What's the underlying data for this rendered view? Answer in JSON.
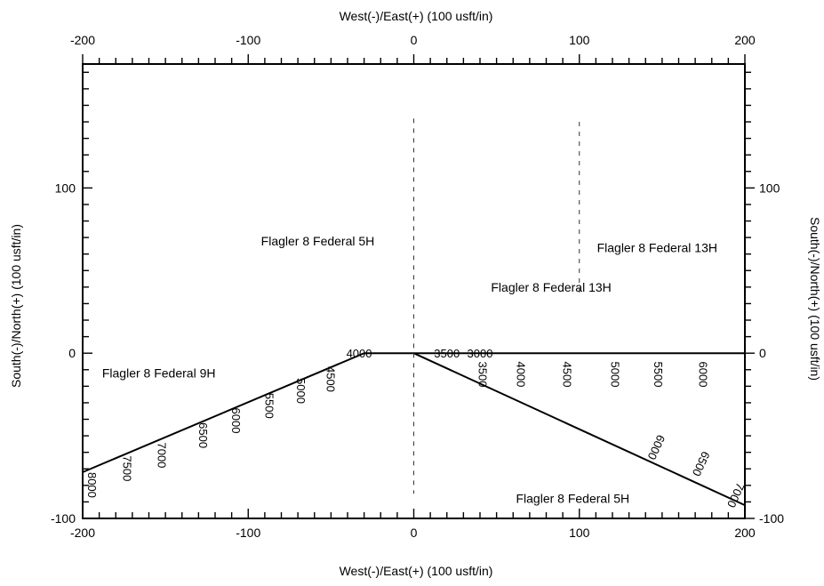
{
  "chart_data": {
    "type": "line",
    "title": "",
    "xlabel": "West(-)/East(+) (100 usft/in)",
    "ylabel": "South(-)/North(+) (100 usft/in)",
    "xlim": [
      -200,
      200
    ],
    "ylim": [
      -100,
      175
    ],
    "x_ticks": [
      -200,
      -100,
      0,
      100,
      200
    ],
    "y_ticks": [
      -100,
      0,
      100
    ],
    "x_tick_labels": [
      "-200",
      "-100",
      "0",
      "100",
      "200"
    ],
    "y_tick_labels": [
      "-100",
      "0",
      "100"
    ],
    "grid": false,
    "series": [
      {
        "name": "Flagler 8 Federal 9H",
        "color": "#000000",
        "points": [
          [
            0,
            0
          ],
          [
            -30,
            0
          ],
          [
            -200,
            -72
          ]
        ],
        "md_labels": [
          {
            "text": "4000",
            "x": -33,
            "y": 0
          },
          {
            "text": "4500",
            "x": -50,
            "y": -8
          },
          {
            "text": "5000",
            "x": -68,
            "y": -15
          },
          {
            "text": "5500",
            "x": -87,
            "y": -24
          },
          {
            "text": "6000",
            "x": -107,
            "y": -33
          },
          {
            "text": "6500",
            "x": -127,
            "y": -42
          },
          {
            "text": "7000",
            "x": -152,
            "y": -54
          },
          {
            "text": "7500",
            "x": -173,
            "y": -62
          },
          {
            "text": "8000",
            "x": -194,
            "y": -72
          }
        ]
      },
      {
        "name": "Flagler 8 Federal 5H",
        "color": "#000000",
        "points": [
          [
            0,
            0
          ],
          [
            200,
            -92
          ]
        ],
        "md_labels": [
          {
            "text": "6000",
            "x": 150,
            "y": -50
          },
          {
            "text": "6500",
            "x": 177,
            "y": -60
          },
          {
            "text": "7000",
            "x": 198,
            "y": -79
          }
        ]
      },
      {
        "name": "Flagler 8 Federal 13H",
        "color": "#000000",
        "points": [
          [
            0,
            0
          ],
          [
            200,
            0
          ]
        ],
        "md_labels": [
          {
            "text": "3500",
            "x": 20,
            "y": 0
          },
          {
            "text": "3000",
            "x": 40,
            "y": 0
          },
          {
            "text": "3500",
            "x": 42,
            "y": -5
          },
          {
            "text": "4000",
            "x": 65,
            "y": -5
          },
          {
            "text": "4500",
            "x": 93,
            "y": -5
          },
          {
            "text": "5000",
            "x": 122,
            "y": -5
          },
          {
            "text": "5500",
            "x": 148,
            "y": -5
          },
          {
            "text": "6000",
            "x": 175,
            "y": -5
          }
        ]
      }
    ],
    "annotations": [
      {
        "text": "Flagler 8 Federal 5H",
        "x": -58,
        "y": 68
      },
      {
        "text": "Flagler 8 Federal 13H",
        "x": 83,
        "y": 40
      },
      {
        "text": "Flagler 8 Federal 13H",
        "x": 147,
        "y": 64
      },
      {
        "text": "Flagler 8 Federal 9H",
        "x": -154,
        "y": -12
      },
      {
        "text": "Flagler 8 Federal 5H",
        "x": 96,
        "y": -88
      }
    ],
    "vertical_dashed_lines": [
      {
        "x": 0,
        "y_from": -85,
        "y_to": 142
      },
      {
        "x": 100,
        "y_from": 35,
        "y_to": 140
      }
    ]
  }
}
